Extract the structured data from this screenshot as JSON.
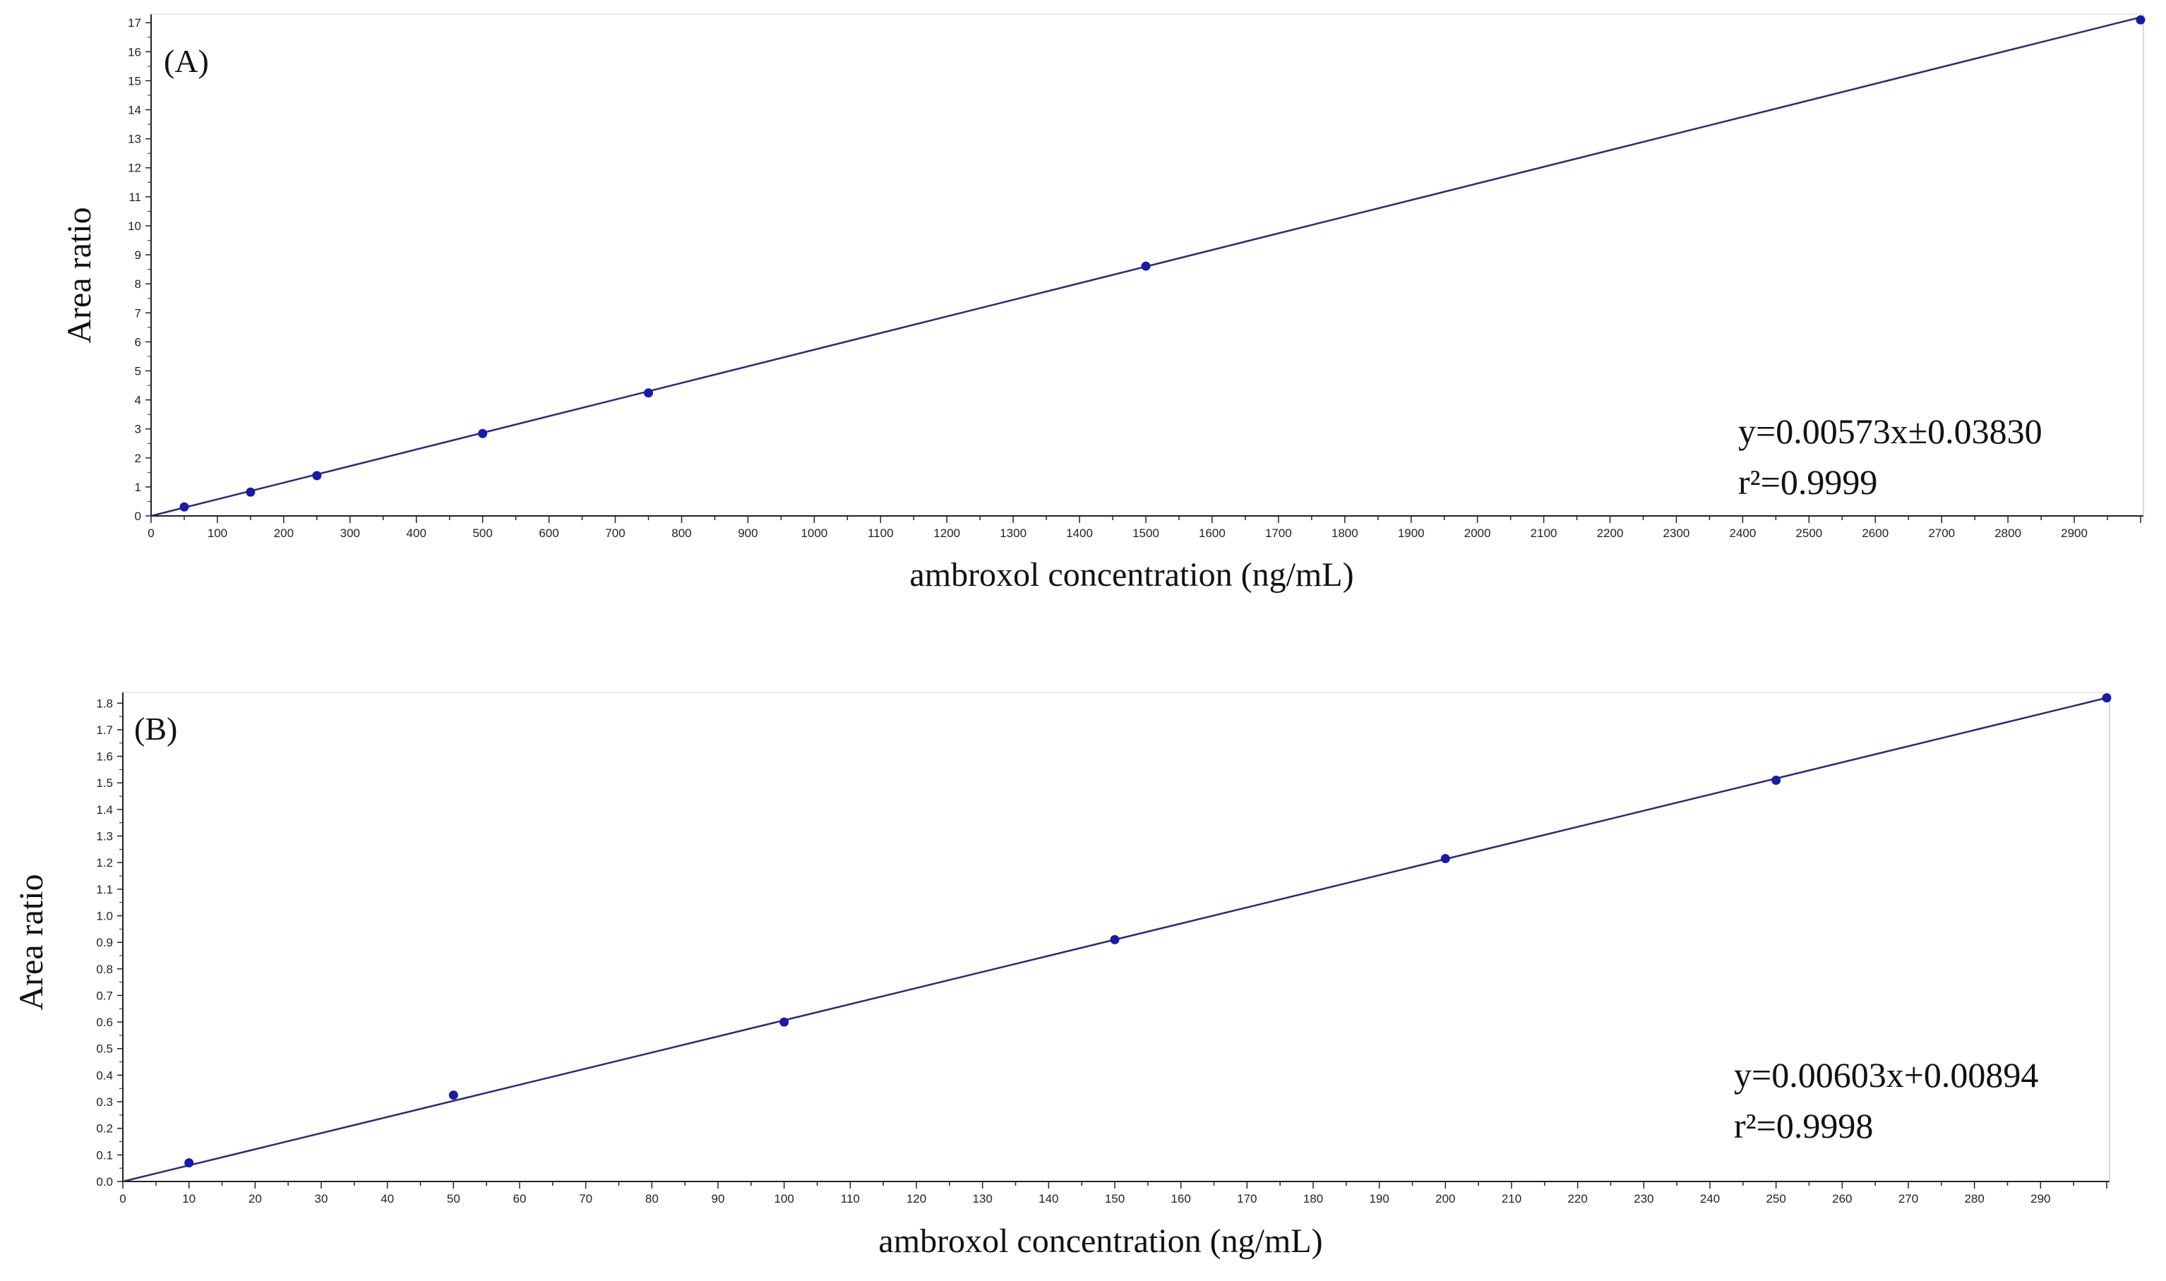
{
  "chart_data": [
    {
      "type": "scatter",
      "panel_label": "(A)",
      "xlabel": "ambroxol concentration (ng/mL)",
      "ylabel": "Area ratio",
      "xlim": [
        0,
        3000
      ],
      "ylim": [
        0,
        17.2
      ],
      "x_ticks": [
        0,
        100,
        200,
        300,
        400,
        500,
        600,
        700,
        800,
        900,
        1000,
        1100,
        1200,
        1300,
        1400,
        1500,
        1600,
        1700,
        1800,
        1900,
        2000,
        2100,
        2200,
        2300,
        2400,
        2500,
        2600,
        2700,
        2800,
        2900
      ],
      "y_ticks": [
        0,
        1,
        2,
        3,
        4,
        5,
        6,
        7,
        8,
        9,
        10,
        11,
        12,
        13,
        14,
        15,
        16,
        17
      ],
      "series": [
        {
          "x": [
            50,
            150,
            250,
            500,
            750,
            1500,
            3000
          ],
          "y": [
            0.31,
            0.82,
            1.39,
            2.84,
            4.24,
            8.61,
            17.1
          ]
        }
      ],
      "fit_line": {
        "x": [
          0,
          3000
        ],
        "y": [
          0.0,
          17.19
        ]
      },
      "equation": "y=0.00573x±0.03830",
      "r_squared": "r²=0.9999",
      "grid": false,
      "colors": {
        "points": "#1a1aa6",
        "line": "#2b2b6e",
        "axis": "#222222"
      }
    },
    {
      "type": "scatter",
      "panel_label": "(B)",
      "xlabel": "ambroxol concentration (ng/mL)",
      "ylabel": "Area ratio",
      "xlim": [
        0,
        300
      ],
      "ylim": [
        0,
        1.83
      ],
      "x_ticks": [
        0,
        10,
        20,
        30,
        40,
        50,
        60,
        70,
        80,
        90,
        100,
        110,
        120,
        130,
        140,
        150,
        160,
        170,
        180,
        190,
        200,
        210,
        220,
        230,
        240,
        250,
        260,
        270,
        280,
        290
      ],
      "y_ticks": [
        "0.0",
        "0.1",
        "0.2",
        "0.3",
        "0.4",
        "0.5",
        "0.6",
        "0.7",
        "0.8",
        "0.9",
        "1.0",
        "1.1",
        "1.2",
        "1.3",
        "1.4",
        "1.5",
        "1.6",
        "1.7",
        "1.8"
      ],
      "series": [
        {
          "x": [
            10,
            50,
            100,
            150,
            200,
            250,
            300
          ],
          "y": [
            0.07,
            0.325,
            0.6,
            0.91,
            1.215,
            1.51,
            1.82
          ]
        }
      ],
      "fit_line": {
        "x": [
          0,
          300
        ],
        "y": [
          0.0,
          1.82
        ]
      },
      "equation": "y=0.00603x+0.00894",
      "r_squared": "r²=0.9998",
      "grid": false,
      "colors": {
        "points": "#1a1aa6",
        "line": "#2b2b6e",
        "axis": "#222222"
      }
    }
  ]
}
